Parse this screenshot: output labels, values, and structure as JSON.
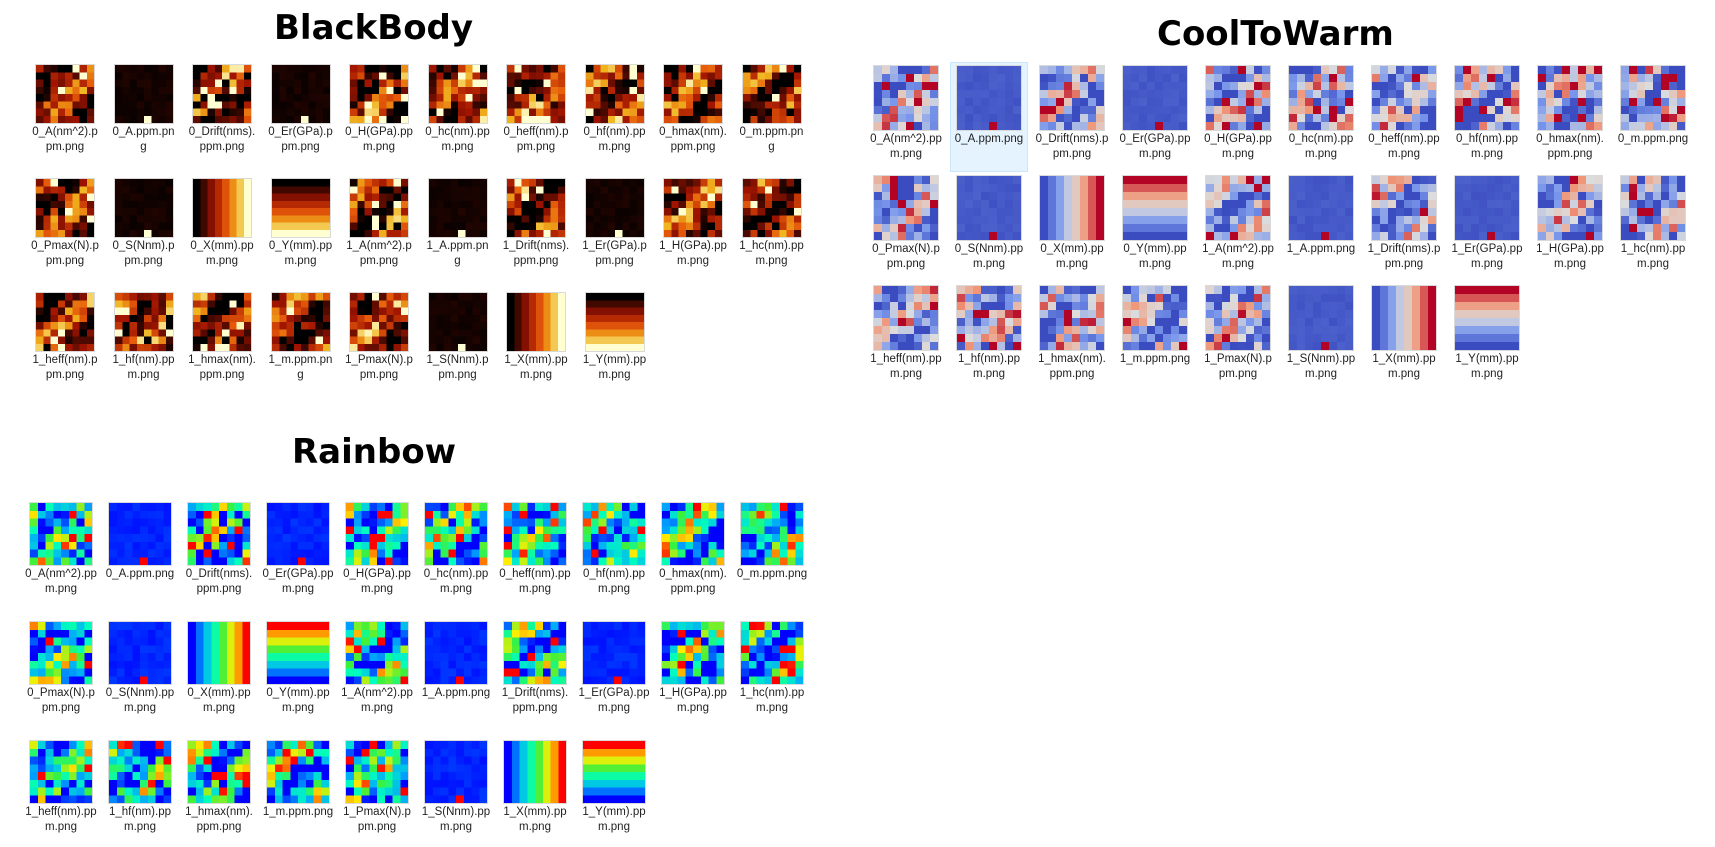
{
  "panels": [
    {
      "title": "BlackBody",
      "colormap": "blackbody",
      "files": [
        "0_A(nm^2).ppm.png",
        "0_A.ppm.png",
        "0_Drift(nms).ppm.png",
        "0_Er(GPa).ppm.png",
        "0_H(GPa).ppm.png",
        "0_hc(nm).ppm.png",
        "0_heff(nm).ppm.png",
        "0_hf(nm).ppm.png",
        "0_hmax(nm).ppm.png",
        "0_m.ppm.png",
        "0_Pmax(N).ppm.png",
        "0_S(Nnm).ppm.png",
        "0_X(mm).ppm.png",
        "0_Y(mm).ppm.png",
        "1_A(nm^2).ppm.png",
        "1_A.ppm.png",
        "1_Drift(nms).ppm.png",
        "1_Er(GPa).ppm.png",
        "1_H(GPa).ppm.png",
        "1_hc(nm).ppm.png",
        "1_heff(nm).ppm.png",
        "1_hf(nm).ppm.png",
        "1_hmax(nm).ppm.png",
        "1_m.ppm.png",
        "1_Pmax(N).ppm.png",
        "1_S(Nnm).ppm.png",
        "1_X(mm).ppm.png",
        "1_Y(mm).ppm.png"
      ],
      "selected_index": -1
    },
    {
      "title": "CoolToWarm",
      "colormap": "cooltowarm",
      "files": [
        "0_A(nm^2).ppm.png",
        "0_A.ppm.png",
        "0_Drift(nms).ppm.png",
        "0_Er(GPa).ppm.png",
        "0_H(GPa).ppm.png",
        "0_hc(nm).ppm.png",
        "0_heff(nm).ppm.png",
        "0_hf(nm).ppm.png",
        "0_hmax(nm).ppm.png",
        "0_m.ppm.png",
        "0_Pmax(N).ppm.png",
        "0_S(Nnm).ppm.png",
        "0_X(mm).ppm.png",
        "0_Y(mm).ppm.png",
        "1_A(nm^2).ppm.png",
        "1_A.ppm.png",
        "1_Drift(nms).ppm.png",
        "1_Er(GPa).ppm.png",
        "1_H(GPa).ppm.png",
        "1_hc(nm).ppm.png",
        "1_heff(nm).ppm.png",
        "1_hf(nm).ppm.png",
        "1_hmax(nm).ppm.png",
        "1_m.ppm.png",
        "1_Pmax(N).ppm.png",
        "1_S(Nnm).ppm.png",
        "1_X(mm).ppm.png",
        "1_Y(mm).ppm.png"
      ],
      "selected_index": 1
    },
    {
      "title": "Rainbow",
      "colormap": "rainbow",
      "files": [
        "0_A(nm^2).ppm.png",
        "0_A.ppm.png",
        "0_Drift(nms).ppm.png",
        "0_Er(GPa).ppm.png",
        "0_H(GPa).ppm.png",
        "0_hc(nm).ppm.png",
        "0_heff(nm).ppm.png",
        "0_hf(nm).ppm.png",
        "0_hmax(nm).ppm.png",
        "0_m.ppm.png",
        "0_Pmax(N).ppm.png",
        "0_S(Nnm).ppm.png",
        "0_X(mm).ppm.png",
        "0_Y(mm).ppm.png",
        "1_A(nm^2).ppm.png",
        "1_A.ppm.png",
        "1_Drift(nms).ppm.png",
        "1_Er(GPa).ppm.png",
        "1_H(GPa).ppm.png",
        "1_hc(nm).ppm.png",
        "1_heff(nm).ppm.png",
        "1_hf(nm).ppm.png",
        "1_hmax(nm).ppm.png",
        "1_m.ppm.png",
        "1_Pmax(N).ppm.png",
        "1_S(Nnm).ppm.png",
        "1_X(mm).ppm.png",
        "1_Y(mm).ppm.png"
      ],
      "selected_index": -1
    }
  ],
  "colors": {
    "selection": "#e5f3ff",
    "thumbnail_border": "#d9d9d9"
  }
}
